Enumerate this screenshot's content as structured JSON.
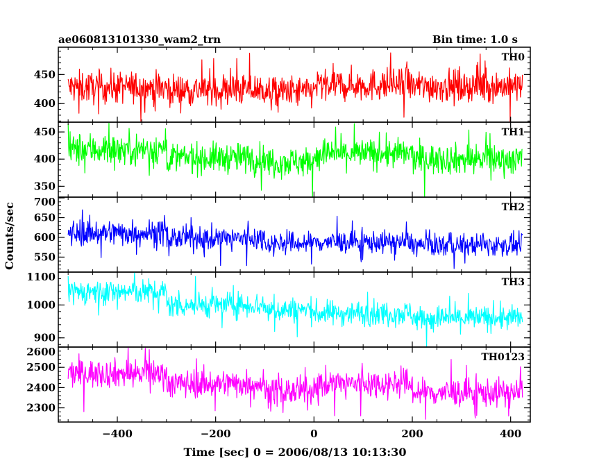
{
  "chart_data": {
    "type": "line",
    "title": "ae060813101330_wam2_trn",
    "bin_time": "Bin time: 1.0 s",
    "xlabel": "Time [sec] 0 = 2006/08/13 10:13:30",
    "ylabel": "Counts/sec",
    "xlim": [
      -520,
      440
    ],
    "x_range": [
      -500,
      424
    ],
    "x_ticks": [
      -400,
      -200,
      0,
      200,
      400
    ],
    "grid": false,
    "panels": [
      {
        "name": "TH0",
        "color": "#ff0000",
        "ylim": [
          368,
          497
        ],
        "y_ticks": [
          400,
          450
        ],
        "segments": [
          {
            "from": -500,
            "to": -300,
            "mean": 428,
            "noise": 22
          },
          {
            "from": -300,
            "to": -100,
            "mean": 424,
            "noise": 22
          },
          {
            "from": -100,
            "to": 0,
            "mean": 420,
            "noise": 22
          },
          {
            "from": 0,
            "to": 200,
            "mean": 432,
            "noise": 22
          },
          {
            "from": 200,
            "to": 424,
            "mean": 430,
            "noise": 22
          }
        ]
      },
      {
        "name": "TH1",
        "color": "#00ff00",
        "ylim": [
          330,
          468
        ],
        "y_ticks": [
          350,
          400,
          450
        ],
        "segments": [
          {
            "from": -500,
            "to": -300,
            "mean": 418,
            "noise": 24
          },
          {
            "from": -300,
            "to": -100,
            "mean": 402,
            "noise": 22
          },
          {
            "from": -100,
            "to": 0,
            "mean": 395,
            "noise": 22
          },
          {
            "from": 0,
            "to": 200,
            "mean": 410,
            "noise": 22
          },
          {
            "from": 200,
            "to": 424,
            "mean": 400,
            "noise": 22
          }
        ]
      },
      {
        "name": "TH2",
        "color": "#0000ff",
        "ylim": [
          512,
          702
        ],
        "y_ticks": [
          550,
          600,
          650,
          700
        ],
        "segments": [
          {
            "from": -500,
            "to": -300,
            "mean": 612,
            "noise": 26
          },
          {
            "from": -300,
            "to": -100,
            "mean": 598,
            "noise": 24
          },
          {
            "from": -100,
            "to": 0,
            "mean": 585,
            "noise": 22
          },
          {
            "from": 0,
            "to": 200,
            "mean": 588,
            "noise": 22
          },
          {
            "from": 200,
            "to": 424,
            "mean": 580,
            "noise": 22
          }
        ]
      },
      {
        "name": "TH3",
        "color": "#00ffff",
        "ylim": [
          872,
          1100
        ],
        "y_ticks": [
          900,
          1000,
          1100
        ],
        "segments": [
          {
            "from": -500,
            "to": -300,
            "mean": 1040,
            "noise": 30
          },
          {
            "from": -300,
            "to": -100,
            "mean": 1000,
            "noise": 30
          },
          {
            "from": -100,
            "to": 0,
            "mean": 985,
            "noise": 30
          },
          {
            "from": 0,
            "to": 200,
            "mean": 975,
            "noise": 30
          },
          {
            "from": 200,
            "to": 424,
            "mean": 960,
            "noise": 30
          }
        ]
      },
      {
        "name": "TH0123",
        "color": "#ff00ff",
        "ylim": [
          2230,
          2600
        ],
        "y_ticks": [
          2300,
          2400,
          2500,
          2600
        ],
        "segments": [
          {
            "from": -500,
            "to": -300,
            "mean": 2470,
            "noise": 55
          },
          {
            "from": -300,
            "to": -100,
            "mean": 2420,
            "noise": 55
          },
          {
            "from": -100,
            "to": 0,
            "mean": 2380,
            "noise": 55
          },
          {
            "from": 0,
            "to": 200,
            "mean": 2420,
            "noise": 55
          },
          {
            "from": 200,
            "to": 424,
            "mean": 2375,
            "noise": 55
          }
        ]
      }
    ]
  }
}
